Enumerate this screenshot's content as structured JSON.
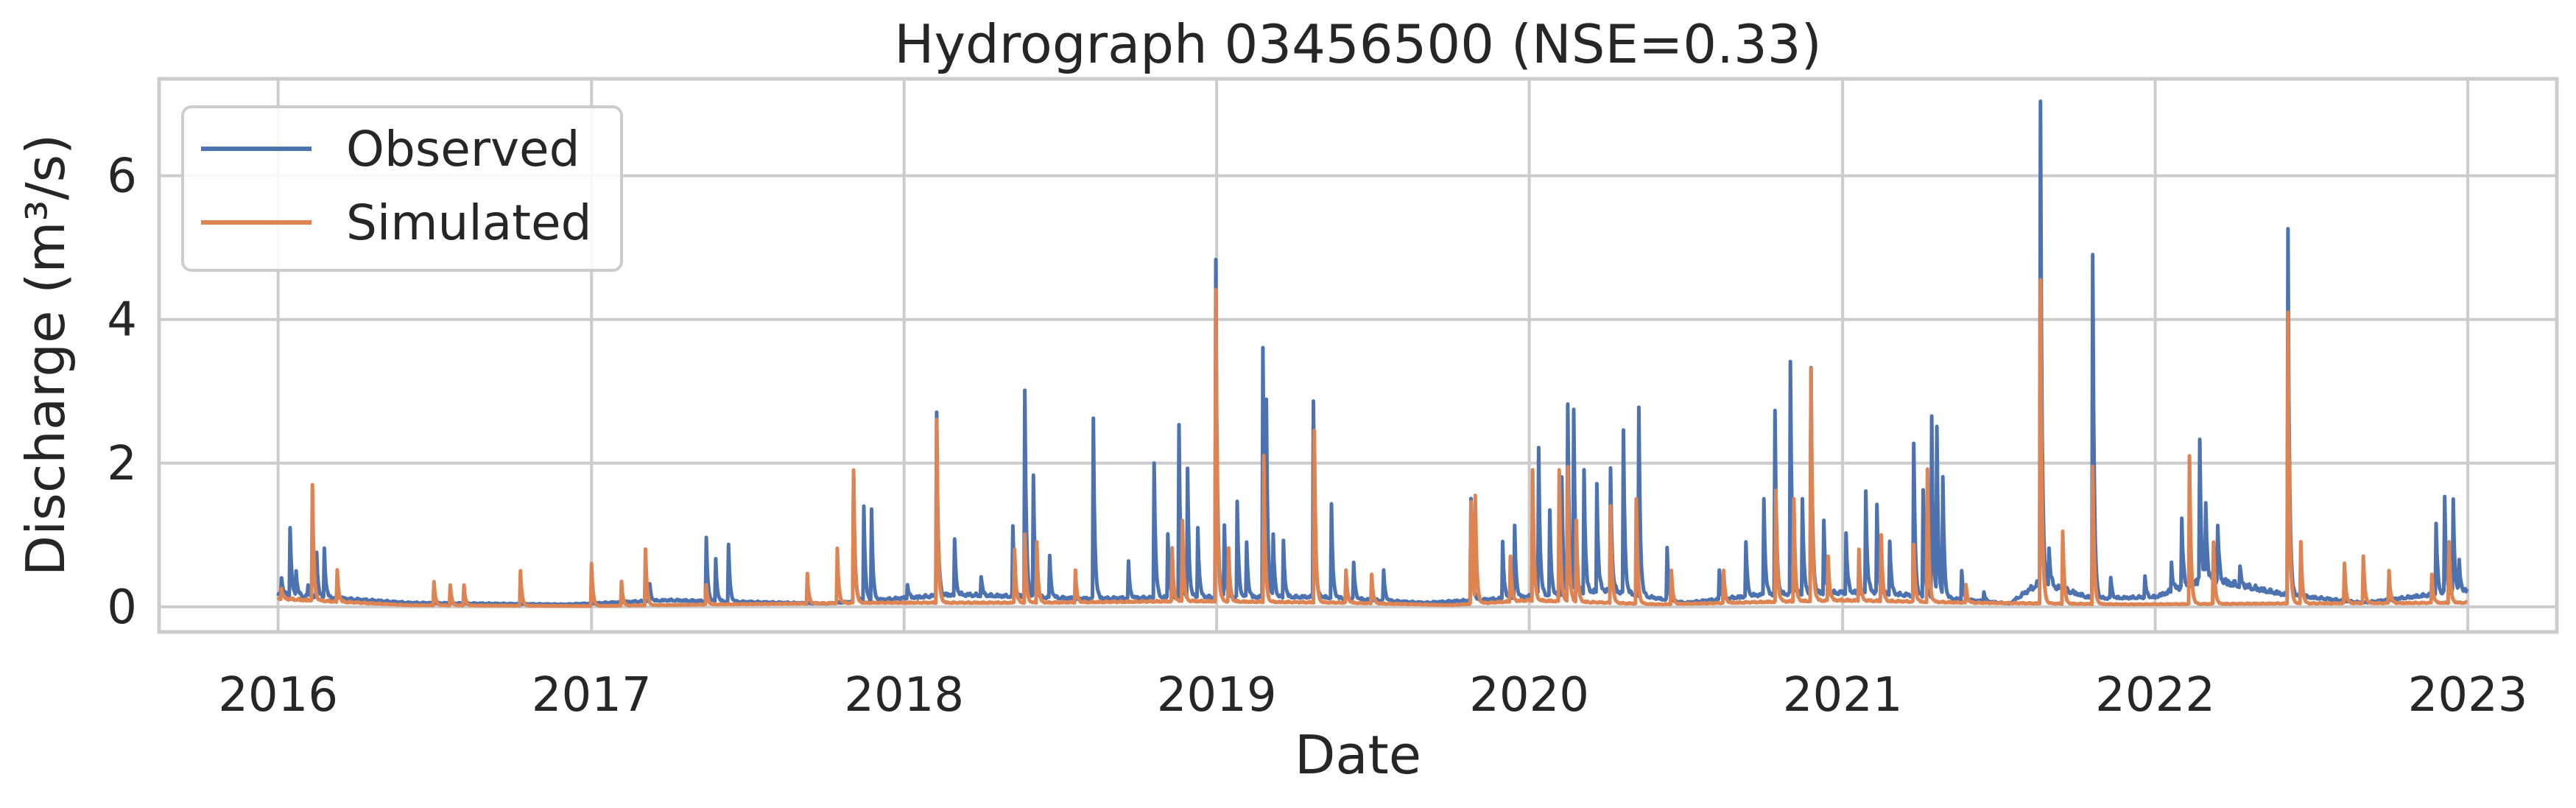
{
  "chart_data": {
    "type": "line",
    "title": "Hydrograph 03456500  (NSE=0.33)",
    "xlabel": "Date",
    "ylabel": "Discharge (m³/s)",
    "x_ticks": [
      "2016",
      "2017",
      "2018",
      "2019",
      "2020",
      "2021",
      "2022",
      "2023"
    ],
    "y_ticks": [
      0,
      2,
      4,
      6
    ],
    "xlim": [
      "2015-08-15",
      "2023-04-15"
    ],
    "ylim": [
      -0.35,
      7.35
    ],
    "grid": true,
    "legend_position": "top-left",
    "legend": [
      "Observed",
      "Simulated"
    ],
    "colors": {
      "observed": "#4c72b0",
      "simulated": "#dd8452",
      "grid": "#cccccc",
      "frame": "#cccccc",
      "background": "#ffffff"
    },
    "series": [
      {
        "name": "Observed",
        "color": "#4c72b0",
        "baseflow": [
          [
            "2016-01-01",
            0.15
          ],
          [
            "2016-06-01",
            0.05
          ],
          [
            "2016-12-01",
            0.03
          ],
          [
            "2017-04-01",
            0.08
          ],
          [
            "2017-10-01",
            0.04
          ],
          [
            "2018-03-01",
            0.15
          ],
          [
            "2018-08-01",
            0.1
          ],
          [
            "2018-12-15",
            0.12
          ],
          [
            "2019-05-01",
            0.12
          ],
          [
            "2019-09-01",
            0.05
          ],
          [
            "2019-12-01",
            0.1
          ],
          [
            "2020-04-01",
            0.2
          ],
          [
            "2020-07-01",
            0.05
          ],
          [
            "2020-10-01",
            0.15
          ],
          [
            "2021-02-01",
            0.18
          ],
          [
            "2021-06-01",
            0.08
          ],
          [
            "2021-07-15",
            0.04
          ],
          [
            "2021-08-20",
            0.3
          ],
          [
            "2021-10-20",
            0.1
          ],
          [
            "2022-01-01",
            0.12
          ],
          [
            "2022-03-01",
            0.35
          ],
          [
            "2022-06-01",
            0.15
          ],
          [
            "2022-09-01",
            0.05
          ],
          [
            "2022-12-31",
            0.2
          ]
        ],
        "peaks": [
          [
            "2016-01-05",
            0.4
          ],
          [
            "2016-01-15",
            1.1
          ],
          [
            "2016-01-22",
            0.5
          ],
          [
            "2016-02-05",
            0.3
          ],
          [
            "2016-02-15",
            0.75
          ],
          [
            "2016-02-24",
            0.8
          ],
          [
            "2016-03-10",
            0.2
          ],
          [
            "2017-05-15",
            0.95
          ],
          [
            "2017-05-26",
            0.65
          ],
          [
            "2017-06-10",
            0.85
          ],
          [
            "2017-03-10",
            0.3
          ],
          [
            "2017-11-03",
            1.8
          ],
          [
            "2017-11-15",
            1.4
          ],
          [
            "2017-11-24",
            1.35
          ],
          [
            "2018-01-05",
            0.3
          ],
          [
            "2018-02-08",
            2.7
          ],
          [
            "2018-03-01",
            0.9
          ],
          [
            "2018-04-01",
            0.4
          ],
          [
            "2018-05-08",
            1.1
          ],
          [
            "2018-05-22",
            3.0
          ],
          [
            "2018-06-01",
            1.8
          ],
          [
            "2018-06-20",
            0.7
          ],
          [
            "2018-08-10",
            2.6
          ],
          [
            "2018-09-20",
            0.6
          ],
          [
            "2018-10-20",
            2.0
          ],
          [
            "2018-11-05",
            1.0
          ],
          [
            "2018-11-18",
            2.5
          ],
          [
            "2018-11-28",
            1.9
          ],
          [
            "2018-12-10",
            1.1
          ],
          [
            "2018-12-31",
            4.8
          ],
          [
            "2019-01-10",
            1.1
          ],
          [
            "2019-01-25",
            1.45
          ],
          [
            "2019-02-05",
            0.9
          ],
          [
            "2019-02-24",
            3.6
          ],
          [
            "2019-02-28",
            2.85
          ],
          [
            "2019-03-08",
            1.0
          ],
          [
            "2019-03-20",
            0.9
          ],
          [
            "2019-04-24",
            2.85
          ],
          [
            "2019-05-15",
            1.4
          ],
          [
            "2019-06-10",
            0.6
          ],
          [
            "2019-07-15",
            0.5
          ],
          [
            "2019-10-25",
            1.5
          ],
          [
            "2019-12-01",
            0.9
          ],
          [
            "2019-12-15",
            1.1
          ],
          [
            "2020-01-05",
            1.4
          ],
          [
            "2020-01-12",
            2.2
          ],
          [
            "2020-01-25",
            1.3
          ],
          [
            "2020-02-08",
            1.8
          ],
          [
            "2020-02-15",
            2.8
          ],
          [
            "2020-02-22",
            2.7
          ],
          [
            "2020-03-05",
            1.9
          ],
          [
            "2020-03-20",
            1.7
          ],
          [
            "2020-04-05",
            1.9
          ],
          [
            "2020-04-20",
            2.45
          ],
          [
            "2020-05-08",
            2.75
          ],
          [
            "2020-06-10",
            0.8
          ],
          [
            "2020-08-10",
            0.5
          ],
          [
            "2020-09-10",
            0.9
          ],
          [
            "2020-10-01",
            1.5
          ],
          [
            "2020-10-14",
            2.7
          ],
          [
            "2020-11-01",
            3.4
          ],
          [
            "2020-11-15",
            1.5
          ],
          [
            "2020-11-25",
            3.3
          ],
          [
            "2020-12-10",
            1.2
          ],
          [
            "2021-01-05",
            1.0
          ],
          [
            "2021-01-28",
            1.6
          ],
          [
            "2021-02-10",
            1.4
          ],
          [
            "2021-02-25",
            0.9
          ],
          [
            "2021-03-25",
            2.25
          ],
          [
            "2021-04-05",
            1.6
          ],
          [
            "2021-04-15",
            2.65
          ],
          [
            "2021-04-21",
            2.5
          ],
          [
            "2021-04-28",
            1.8
          ],
          [
            "2021-05-20",
            0.5
          ],
          [
            "2021-06-15",
            0.2
          ],
          [
            "2021-08-20",
            7.0
          ],
          [
            "2021-08-30",
            0.8
          ],
          [
            "2021-10-20",
            4.9
          ],
          [
            "2021-11-10",
            0.4
          ],
          [
            "2021-12-20",
            0.4
          ],
          [
            "2022-01-20",
            0.6
          ],
          [
            "2022-02-01",
            1.2
          ],
          [
            "2022-02-22",
            2.3
          ],
          [
            "2022-03-01",
            1.4
          ],
          [
            "2022-03-15",
            1.1
          ],
          [
            "2022-04-10",
            0.5
          ],
          [
            "2022-06-05",
            5.25
          ],
          [
            "2022-06-20",
            0.3
          ],
          [
            "2022-11-25",
            1.15
          ],
          [
            "2022-12-05",
            1.5
          ],
          [
            "2022-12-15",
            1.45
          ],
          [
            "2022-12-22",
            0.6
          ]
        ]
      },
      {
        "name": "Simulated",
        "color": "#dd8452",
        "baseflow": [
          [
            "2016-01-01",
            0.1
          ],
          [
            "2016-06-01",
            0.02
          ],
          [
            "2016-12-31",
            0.01
          ],
          [
            "2017-06-01",
            0.03
          ],
          [
            "2017-12-01",
            0.05
          ],
          [
            "2018-06-01",
            0.05
          ],
          [
            "2018-12-01",
            0.07
          ],
          [
            "2019-06-01",
            0.05
          ],
          [
            "2019-10-01",
            0.02
          ],
          [
            "2020-01-01",
            0.08
          ],
          [
            "2020-06-01",
            0.03
          ],
          [
            "2021-01-01",
            0.08
          ],
          [
            "2021-06-01",
            0.05
          ],
          [
            "2021-12-01",
            0.03
          ],
          [
            "2022-06-01",
            0.04
          ],
          [
            "2022-12-31",
            0.05
          ]
        ],
        "peaks": [
          [
            "2016-01-05",
            0.25
          ],
          [
            "2016-02-10",
            1.7
          ],
          [
            "2016-03-10",
            0.5
          ],
          [
            "2016-07-01",
            0.35
          ],
          [
            "2016-07-20",
            0.3
          ],
          [
            "2016-08-05",
            0.3
          ],
          [
            "2016-10-10",
            0.5
          ],
          [
            "2017-01-01",
            0.6
          ],
          [
            "2017-02-05",
            0.35
          ],
          [
            "2017-03-05",
            0.8
          ],
          [
            "2017-05-15",
            0.3
          ],
          [
            "2017-09-10",
            0.45
          ],
          [
            "2017-10-15",
            0.8
          ],
          [
            "2017-11-03",
            1.9
          ],
          [
            "2018-02-08",
            2.6
          ],
          [
            "2018-05-10",
            0.8
          ],
          [
            "2018-05-22",
            1.0
          ],
          [
            "2018-06-05",
            0.9
          ],
          [
            "2018-07-20",
            0.5
          ],
          [
            "2018-11-10",
            0.8
          ],
          [
            "2018-11-22",
            1.2
          ],
          [
            "2018-12-31",
            4.4
          ],
          [
            "2019-01-15",
            0.8
          ],
          [
            "2019-02-25",
            2.1
          ],
          [
            "2019-04-25",
            2.45
          ],
          [
            "2019-06-01",
            0.5
          ],
          [
            "2019-07-01",
            0.45
          ],
          [
            "2019-10-25",
            1.45
          ],
          [
            "2019-10-30",
            1.55
          ],
          [
            "2019-12-10",
            0.7
          ],
          [
            "2020-01-05",
            1.9
          ],
          [
            "2020-02-05",
            1.9
          ],
          [
            "2020-02-15",
            1.95
          ],
          [
            "2020-02-25",
            1.2
          ],
          [
            "2020-04-05",
            1.4
          ],
          [
            "2020-05-05",
            1.5
          ],
          [
            "2020-06-15",
            0.5
          ],
          [
            "2020-08-15",
            0.5
          ],
          [
            "2020-10-15",
            1.6
          ],
          [
            "2020-11-05",
            1.5
          ],
          [
            "2020-11-25",
            3.3
          ],
          [
            "2020-12-15",
            0.7
          ],
          [
            "2021-01-20",
            0.8
          ],
          [
            "2021-02-15",
            1.0
          ],
          [
            "2021-03-25",
            0.85
          ],
          [
            "2021-04-10",
            1.9
          ],
          [
            "2021-05-25",
            0.3
          ],
          [
            "2021-08-20",
            4.55
          ],
          [
            "2021-09-15",
            1.05
          ],
          [
            "2021-10-20",
            1.95
          ],
          [
            "2022-02-10",
            2.1
          ],
          [
            "2022-03-10",
            0.9
          ],
          [
            "2022-06-05",
            4.1
          ],
          [
            "2022-06-20",
            0.9
          ],
          [
            "2022-08-10",
            0.6
          ],
          [
            "2022-09-01",
            0.7
          ],
          [
            "2022-10-01",
            0.5
          ],
          [
            "2022-11-20",
            0.45
          ],
          [
            "2022-12-10",
            0.9
          ]
        ]
      }
    ]
  }
}
